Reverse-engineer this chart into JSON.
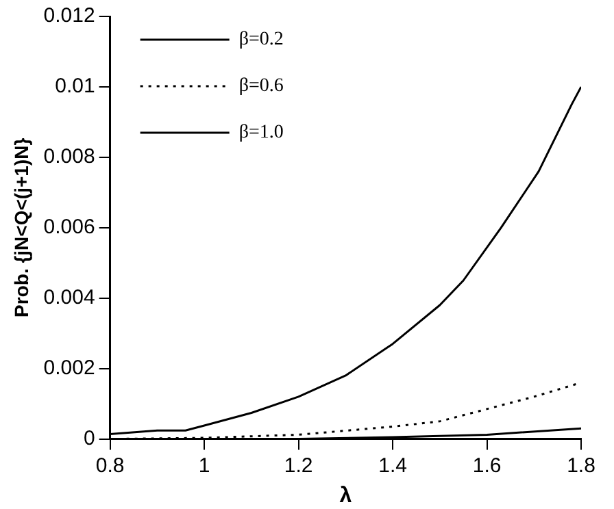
{
  "chart_data": {
    "type": "line",
    "xlabel": "λ",
    "ylabel": "Prob. {jN<Q<(j+1)N}",
    "xlim": [
      0.8,
      1.8
    ],
    "xticks": [
      0.8,
      1,
      1.2,
      1.4,
      1.6,
      1.8
    ],
    "ylim": [
      0,
      0.012
    ],
    "yticks": [
      0,
      0.002,
      0.004,
      0.006,
      0.008,
      0.01,
      0.012
    ],
    "grid": false,
    "legend": "top left",
    "marker": "none",
    "series": [
      {
        "name": "β=0.2",
        "color": "#000000",
        "line_style": "solid",
        "x": [
          0.8,
          0.9,
          0.96,
          1.0,
          1.1,
          1.2,
          1.3,
          1.4,
          1.5,
          1.55,
          1.63,
          1.71,
          1.78,
          1.8
        ],
        "values": [
          0.00014,
          0.00024,
          0.00024,
          0.00038,
          0.00074,
          0.0012,
          0.0018,
          0.0027,
          0.0038,
          0.0045,
          0.006,
          0.0076,
          0.0095,
          0.01
        ]
      },
      {
        "name": "β=0.6",
        "color": "#000000",
        "line_style": "dotted",
        "x": [
          0.8,
          1.0,
          1.2,
          1.4,
          1.5,
          1.6,
          1.7,
          1.8
        ],
        "values": [
          0,
          3e-05,
          0.00012,
          0.00035,
          0.0005,
          0.00085,
          0.0012,
          0.0016
        ]
      },
      {
        "name": "β=1.0",
        "color": "#000000",
        "line_style": "solid",
        "x": [
          0.8,
          1.0,
          1.2,
          1.4,
          1.6,
          1.8
        ],
        "values": [
          0,
          0,
          0,
          5e-05,
          0.00012,
          0.0003
        ]
      }
    ]
  }
}
